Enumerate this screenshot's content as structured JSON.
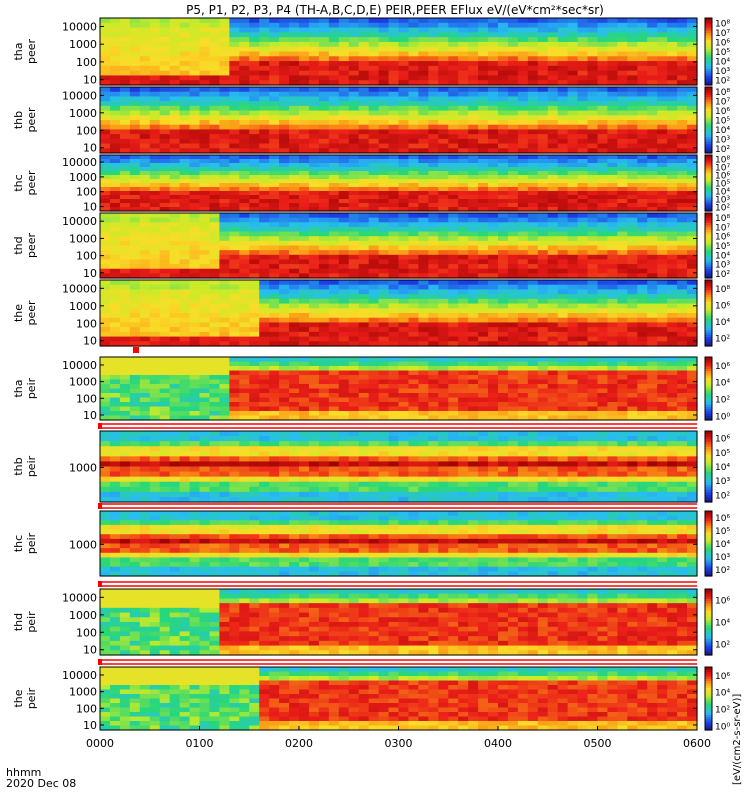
{
  "chart_data": {
    "type": "heatmap",
    "title": "P5, P1, P2, P3, P4 (TH-A,B,C,D,E) PEIR,PEER EFlux eV/(eV*cm²*sec*sr)",
    "colorbar_label": "[eV/(cm2-s-sr-eV)]",
    "xlabel": "hhmm",
    "date_label": "2020 Dec 08",
    "xlim": [
      0,
      360
    ],
    "xticks": [
      {
        "value": 0,
        "label": "0000"
      },
      {
        "value": 60,
        "label": "0100"
      },
      {
        "value": 120,
        "label": "0200"
      },
      {
        "value": 180,
        "label": "0300"
      },
      {
        "value": 240,
        "label": "0400"
      },
      {
        "value": 300,
        "label": "0500"
      },
      {
        "value": 360,
        "label": "0600"
      }
    ],
    "panels": [
      {
        "line1": "tha",
        "line2": "peer",
        "ylim": [
          5,
          30000
        ],
        "yticks": [
          {
            "value": 10,
            "label": "10"
          },
          {
            "value": 100,
            "label": "100"
          },
          {
            "value": 1000,
            "label": "1000"
          },
          {
            "value": 10000,
            "label": "10000"
          }
        ],
        "cbticks": [
          {
            "value": 2,
            "label": "10²"
          },
          {
            "value": 3,
            "label": "10³"
          },
          {
            "value": 4,
            "label": "10⁴"
          },
          {
            "value": 5,
            "label": "10⁵"
          },
          {
            "value": 6,
            "label": "10⁶"
          },
          {
            "value": 7,
            "label": "10⁷"
          },
          {
            "value": 8,
            "label": "10⁸"
          }
        ],
        "cbrange": [
          1.5,
          8.5
        ],
        "kind": "peer",
        "transitions": [
          80
        ],
        "lowcut": 0
      },
      {
        "line1": "thb",
        "line2": "peer",
        "ylim": [
          5,
          30000
        ],
        "yticks": [
          {
            "value": 10,
            "label": "10"
          },
          {
            "value": 100,
            "label": "100"
          },
          {
            "value": 1000,
            "label": "1000"
          },
          {
            "value": 10000,
            "label": "10000"
          }
        ],
        "cbticks": [
          {
            "value": 2,
            "label": "10²"
          },
          {
            "value": 3,
            "label": "10³"
          },
          {
            "value": 4,
            "label": "10⁴"
          },
          {
            "value": 5,
            "label": "10⁵"
          },
          {
            "value": 6,
            "label": "10⁶"
          },
          {
            "value": 7,
            "label": "10⁷"
          },
          {
            "value": 8,
            "label": "10⁸"
          }
        ],
        "cbrange": [
          1.5,
          8.5
        ],
        "kind": "peer",
        "transitions": [],
        "lowcut": 0
      },
      {
        "line1": "thc",
        "line2": "peer",
        "ylim": [
          5,
          30000
        ],
        "yticks": [
          {
            "value": 10,
            "label": "10"
          },
          {
            "value": 100,
            "label": "100"
          },
          {
            "value": 1000,
            "label": "1000"
          },
          {
            "value": 10000,
            "label": "10000"
          }
        ],
        "cbticks": [
          {
            "value": 2,
            "label": "10²"
          },
          {
            "value": 3,
            "label": "10³"
          },
          {
            "value": 4,
            "label": "10⁴"
          },
          {
            "value": 5,
            "label": "10⁵"
          },
          {
            "value": 6,
            "label": "10⁶"
          },
          {
            "value": 7,
            "label": "10⁷"
          },
          {
            "value": 8,
            "label": "10⁸"
          }
        ],
        "cbrange": [
          1.5,
          8.5
        ],
        "kind": "peer",
        "transitions": [],
        "lowcut": 0
      },
      {
        "line1": "thd",
        "line2": "peer",
        "ylim": [
          5,
          30000
        ],
        "yticks": [
          {
            "value": 10,
            "label": "10"
          },
          {
            "value": 100,
            "label": "100"
          },
          {
            "value": 1000,
            "label": "1000"
          },
          {
            "value": 10000,
            "label": "10000"
          }
        ],
        "cbticks": [
          {
            "value": 2,
            "label": "10²"
          },
          {
            "value": 3,
            "label": "10³"
          },
          {
            "value": 4,
            "label": "10⁴"
          },
          {
            "value": 5,
            "label": "10⁵"
          },
          {
            "value": 6,
            "label": "10⁶"
          },
          {
            "value": 7,
            "label": "10⁷"
          },
          {
            "value": 8,
            "label": "10⁸"
          }
        ],
        "cbrange": [
          1.5,
          8.5
        ],
        "kind": "peer",
        "transitions": [
          70,
          105
        ],
        "lowcut": 0
      },
      {
        "line1": "the",
        "line2": "peer",
        "ylim": [
          5,
          30000
        ],
        "yticks": [
          {
            "value": 10,
            "label": "10"
          },
          {
            "value": 100,
            "label": "100"
          },
          {
            "value": 1000,
            "label": "1000"
          },
          {
            "value": 10000,
            "label": "10000"
          }
        ],
        "cbticks": [
          {
            "value": 2,
            "label": "10²"
          },
          {
            "value": 4,
            "label": "10⁴"
          },
          {
            "value": 6,
            "label": "10⁶"
          },
          {
            "value": 8,
            "label": "10⁸"
          }
        ],
        "cbrange": [
          1,
          9
        ],
        "kind": "peer",
        "transitions": [
          95,
          125,
          160
        ],
        "lowcut": 0
      },
      {
        "line1": "tha",
        "line2": "peir",
        "ylim": [
          5,
          30000
        ],
        "yticks": [
          {
            "value": 10,
            "label": "10"
          },
          {
            "value": 100,
            "label": "100"
          },
          {
            "value": 1000,
            "label": "1000"
          },
          {
            "value": 10000,
            "label": "10000"
          }
        ],
        "cbticks": [
          {
            "value": 0,
            "label": "10⁰"
          },
          {
            "value": 2,
            "label": "10²"
          },
          {
            "value": 4,
            "label": "10⁴"
          },
          {
            "value": 6,
            "label": "10⁶"
          }
        ],
        "cbrange": [
          -0.5,
          7
        ],
        "kind": "peir",
        "transitions": [
          80,
          105
        ],
        "lowcut": 0
      },
      {
        "line1": "thb",
        "line2": "peir",
        "ylim": [
          30,
          40000
        ],
        "yticks": [
          {
            "value": 1000,
            "label": "1000"
          }
        ],
        "cbticks": [
          {
            "value": 2,
            "label": "10²"
          },
          {
            "value": 3,
            "label": "10³"
          },
          {
            "value": 4,
            "label": "10⁴"
          },
          {
            "value": 5,
            "label": "10⁵"
          },
          {
            "value": 6,
            "label": "10⁶"
          }
        ],
        "cbrange": [
          1.5,
          6.5
        ],
        "kind": "band",
        "transitions": [],
        "lowcut": 0
      },
      {
        "line1": "thc",
        "line2": "peir",
        "ylim": [
          30,
          40000
        ],
        "yticks": [
          {
            "value": 1000,
            "label": "1000"
          }
        ],
        "cbticks": [
          {
            "value": 2,
            "label": "10²"
          },
          {
            "value": 3,
            "label": "10³"
          },
          {
            "value": 4,
            "label": "10⁴"
          },
          {
            "value": 5,
            "label": "10⁵"
          },
          {
            "value": 6,
            "label": "10⁶"
          }
        ],
        "cbrange": [
          1.5,
          6.5
        ],
        "kind": "band",
        "transitions": [],
        "lowcut": 0
      },
      {
        "line1": "thd",
        "line2": "peir",
        "ylim": [
          5,
          30000
        ],
        "yticks": [
          {
            "value": 10,
            "label": "10"
          },
          {
            "value": 100,
            "label": "100"
          },
          {
            "value": 1000,
            "label": "1000"
          },
          {
            "value": 10000,
            "label": "10000"
          }
        ],
        "cbticks": [
          {
            "value": 2,
            "label": "10²"
          },
          {
            "value": 4,
            "label": "10⁴"
          },
          {
            "value": 6,
            "label": "10⁶"
          }
        ],
        "cbrange": [
          1,
          7
        ],
        "kind": "peir",
        "transitions": [
          72,
          105
        ],
        "lowcut": 0
      },
      {
        "line1": "the",
        "line2": "peir",
        "ylim": [
          5,
          30000
        ],
        "yticks": [
          {
            "value": 10,
            "label": "10"
          },
          {
            "value": 100,
            "label": "100"
          },
          {
            "value": 1000,
            "label": "1000"
          },
          {
            "value": 10000,
            "label": "10000"
          }
        ],
        "cbticks": [
          {
            "value": 0,
            "label": "10⁰"
          },
          {
            "value": 2,
            "label": "10²"
          },
          {
            "value": 4,
            "label": "10⁴"
          },
          {
            "value": 6,
            "label": "10⁶"
          }
        ],
        "cbrange": [
          -0.5,
          7
        ],
        "kind": "peir",
        "transitions": [
          95,
          150
        ],
        "lowcut": 0
      }
    ]
  }
}
